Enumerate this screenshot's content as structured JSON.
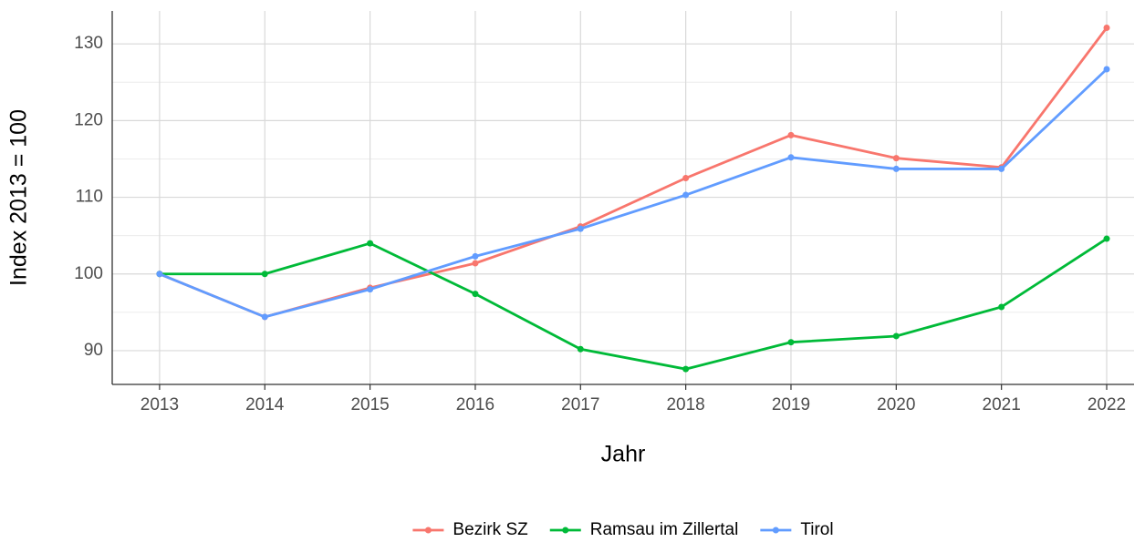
{
  "chart_data": {
    "type": "line",
    "x_label": "Jahr",
    "y_label": "Index  2013  = 100",
    "x": [
      2013,
      2014,
      2015,
      2016,
      2017,
      2018,
      2019,
      2020,
      2021,
      2022
    ],
    "series": [
      {
        "name": "Bezirk SZ",
        "color": "#F8766D",
        "values": [
          100,
          94.4,
          98.2,
          101.4,
          106.2,
          112.5,
          118.1,
          115.1,
          113.9,
          132.1
        ]
      },
      {
        "name": "Ramsau im Zillertal",
        "color": "#00BA38",
        "values": [
          100,
          100,
          104,
          97.4,
          90.2,
          87.6,
          91.1,
          91.9,
          95.7,
          104.6
        ]
      },
      {
        "name": "Tirol",
        "color": "#619CFF",
        "values": [
          100,
          94.4,
          98,
          102.3,
          105.9,
          110.3,
          115.2,
          113.7,
          113.7,
          126.7
        ]
      }
    ],
    "xlim": [
      2012.55,
      2022.26
    ],
    "ylim": [
      85.6,
      134.3
    ],
    "xticks": [
      2013,
      2014,
      2015,
      2016,
      2017,
      2018,
      2019,
      2020,
      2021,
      2022
    ],
    "yticks": [
      90,
      100,
      110,
      120,
      130
    ],
    "grid": true,
    "legend": "bottom"
  }
}
